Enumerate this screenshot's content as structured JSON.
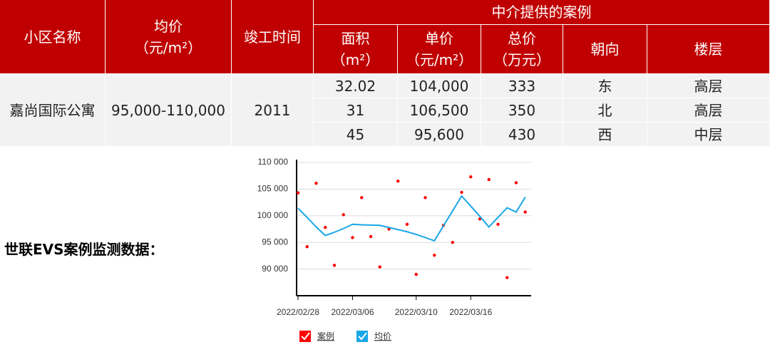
{
  "table": {
    "columns": [
      {
        "label": "小区名称"
      },
      {
        "label": "均价",
        "unit": "（元/m²）"
      },
      {
        "label": "竣工时间"
      }
    ],
    "group": "中介提供的案例",
    "sub_columns": [
      {
        "label": "面积",
        "unit": "（m²）"
      },
      {
        "label": "单价",
        "unit": "（元/m²）"
      },
      {
        "label": "总价",
        "unit": "（万元）"
      },
      {
        "label": "朝向"
      },
      {
        "label": "楼层"
      }
    ],
    "estate": {
      "name": "嘉尚国际公寓",
      "avg_price": "95,000-110,000",
      "year": "2011"
    },
    "cases": [
      [
        "32.02",
        "104,000",
        "333",
        "东",
        "高层"
      ],
      [
        "31",
        "106,500",
        "350",
        "北",
        "高层"
      ],
      [
        "45",
        "95,600",
        "430",
        "西",
        "中层"
      ]
    ]
  },
  "monitor_label": "世联EVS案例监测数据：",
  "chart": {
    "type": "combo",
    "categories": [
      "2022/02/28",
      null,
      null,
      null,
      null,
      null,
      "2022/03/06",
      null,
      null,
      null,
      null,
      null,
      null,
      "2022/03/10",
      null,
      null,
      null,
      null,
      null,
      "2022/03/16",
      null,
      null,
      null,
      null,
      null,
      null
    ],
    "series": [
      {
        "name": "案例",
        "kind": "scatter",
        "color": "#ff0000",
        "values": [
          104300,
          94200,
          106100,
          97800,
          90700,
          100200,
          95900,
          103400,
          96100,
          90400,
          97500,
          106500,
          98400,
          89000,
          103400,
          92600,
          98200,
          95000,
          104400,
          107300,
          99400,
          106800,
          98400,
          88400,
          106200,
          100700
        ]
      },
      {
        "name": "均价",
        "kind": "line",
        "color": "#1aa7e6",
        "values": [
          101400,
          99700,
          97900,
          96300,
          96900,
          97600,
          98400,
          98300,
          98250,
          98200,
          97800,
          97400,
          97000,
          96500,
          95900,
          95300,
          98100,
          100900,
          103700,
          101800,
          99900,
          97900,
          99700,
          101500,
          100700,
          103500
        ]
      }
    ],
    "ylim": [
      85000,
      110000
    ],
    "yticks": [
      {
        "value": 90000,
        "label": "90 000"
      },
      {
        "value": 95000,
        "label": "95 000"
      },
      {
        "value": 100000,
        "label": "100 000"
      },
      {
        "value": 105000,
        "label": "105 000"
      },
      {
        "value": 110000,
        "label": "110 000"
      }
    ],
    "grid": true
  }
}
